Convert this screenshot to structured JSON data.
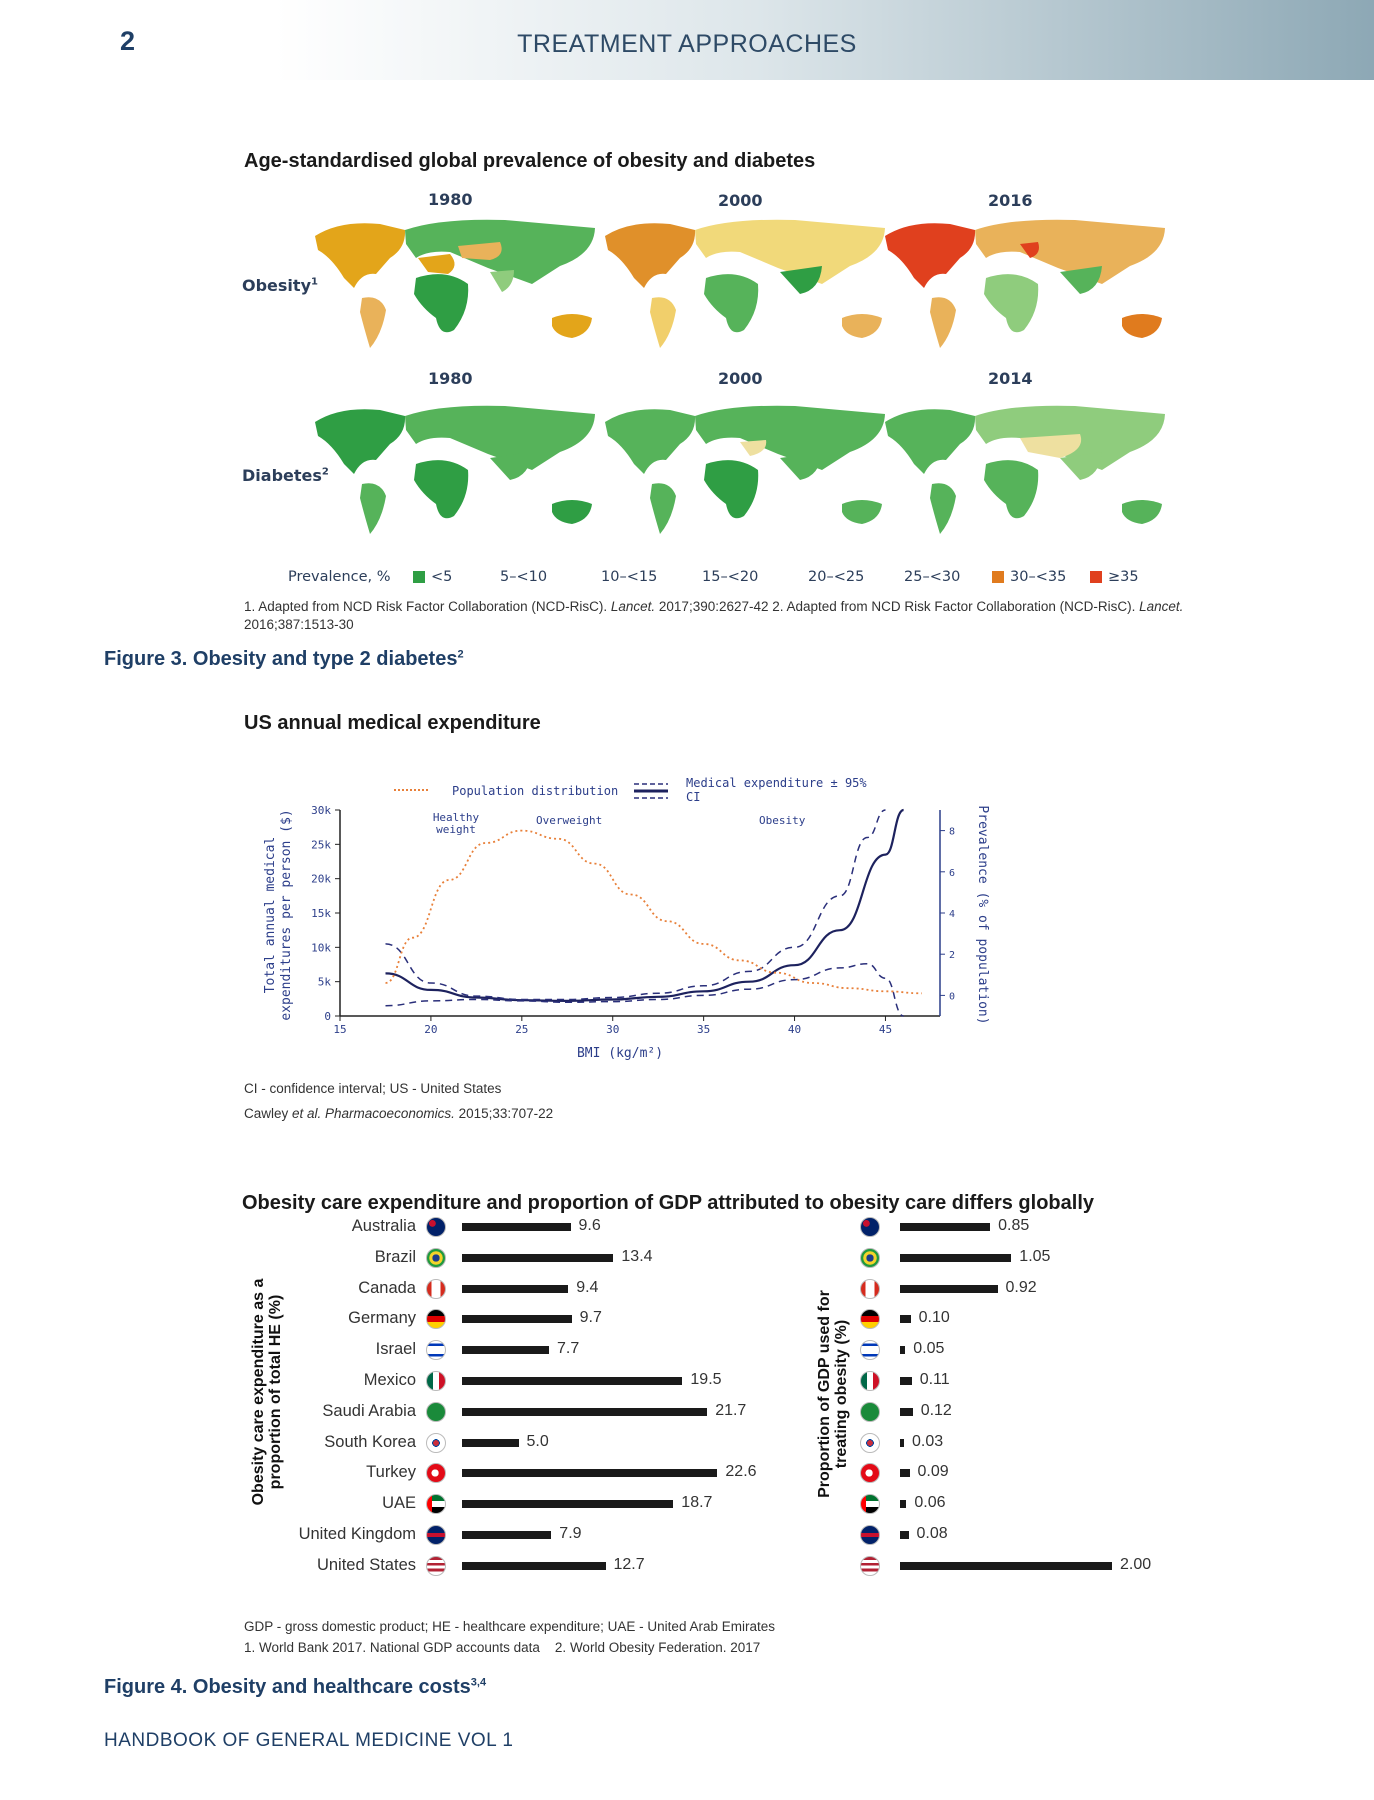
{
  "header": {
    "page_number": "2",
    "section_title": "TREATMENT APPROACHES"
  },
  "figure3": {
    "heading": "Age-standardised global prevalence of obesity and diabetes",
    "obesity_years": [
      "1980",
      "2000",
      "2016"
    ],
    "diabetes_years": [
      "1980",
      "2000",
      "2014"
    ],
    "obesity_label": "Obesity",
    "obesity_ref": "1",
    "diabetes_label": "Diabetes",
    "diabetes_ref": "2",
    "legend_title": "Prevalence, %",
    "legend": [
      {
        "label": "<5",
        "color": "#2f9e44"
      },
      {
        "label": "5–<10",
        "color": "#56b35a"
      },
      {
        "label": "10–<15",
        "color": "#8fcc7d"
      },
      {
        "label": "15–<20",
        "color": "#eee0a0"
      },
      {
        "label": "20–<25",
        "color": "#f1cf6b"
      },
      {
        "label": "25–<30",
        "color": "#e9b25a"
      },
      {
        "label": "30–<35",
        "color": "#e07b1e"
      },
      {
        "label": "≥35",
        "color": "#e0401e"
      }
    ],
    "reference_text_1": "1. Adapted from NCD Risk Factor Collaboration (NCD-RisC). ",
    "reference_journal_1": "Lancet.",
    "reference_text_2": " 2017;390:2627-42   2. Adapted from NCD Risk Factor Collaboration (NCD-RisC). ",
    "reference_journal_2": "Lancet.",
    "reference_text_3": " 2016;387:1513-30",
    "caption": "Figure 3. Obesity and type 2 diabetes",
    "caption_ref": "2"
  },
  "us_chart": {
    "heading": "US annual medical expenditure",
    "legend_population": "Population distribution",
    "legend_expenditure": "Medical expenditure ± 95% CI",
    "region_healthy": "Healthy weight",
    "region_overweight": "Overweight",
    "region_obesity": "Obesity",
    "ylabel_line1": "Total annual medical",
    "ylabel_line2": "expenditures per person ($)",
    "y2label": "Prevalence (% of population)",
    "xlabel": "BMI (kg/m²)",
    "note": "CI - confidence interval; US - United States",
    "citation_author": "Cawley ",
    "citation_etal": "et al. Pharmacoeconomics.",
    "citation_rest": " 2015;33:707-22"
  },
  "chart_data": {
    "type": "line",
    "xlabel": "BMI (kg/m²)",
    "ylabel": "Total annual medical expenditures per person ($)",
    "xlim": [
      15,
      48
    ],
    "ylim": [
      0,
      30000
    ],
    "x_ticks": [
      15,
      20,
      25,
      30,
      35,
      40,
      45
    ],
    "y_ticks": [
      0,
      5000,
      10000,
      15000,
      20000,
      25000,
      30000
    ],
    "y_tick_labels": [
      "0",
      "5k",
      "10k",
      "15k",
      "20k",
      "25k",
      "30k"
    ],
    "y2label": "Prevalence (% of population)",
    "y2lim": [
      -1,
      9
    ],
    "y2_ticks": [
      0,
      2,
      4,
      6,
      8
    ],
    "series": [
      {
        "name": "Medical expenditure ± 95% CI",
        "axis": "left",
        "x": [
          17.5,
          20,
          22.5,
          25,
          27.5,
          30,
          32.5,
          35,
          37.5,
          40,
          42.5,
          45,
          46
        ],
        "values": [
          6200,
          3800,
          2700,
          2300,
          2200,
          2400,
          2800,
          3600,
          5000,
          7400,
          12500,
          23500,
          30000
        ]
      },
      {
        "name": "Upper 95% CI",
        "axis": "left",
        "x": [
          17.5,
          20,
          22.5,
          25,
          27.5,
          30,
          32.5,
          35,
          37.5,
          40,
          42.5,
          44,
          45
        ],
        "values": [
          10500,
          4800,
          2900,
          2400,
          2400,
          2700,
          3300,
          4400,
          6500,
          10000,
          17500,
          26000,
          32000
        ]
      },
      {
        "name": "Lower 95% CI",
        "axis": "left",
        "x": [
          17.5,
          20,
          22.5,
          25,
          27.5,
          30,
          32.5,
          35,
          37.5,
          40,
          42.5,
          44,
          45,
          46
        ],
        "values": [
          1500,
          2200,
          2400,
          2200,
          2000,
          2100,
          2400,
          3000,
          3900,
          5300,
          7000,
          7600,
          5500,
          0
        ]
      },
      {
        "name": "Population distribution",
        "axis": "right",
        "x": [
          17.5,
          19,
          21,
          23,
          25,
          27,
          29,
          31,
          33,
          35,
          37,
          39,
          41,
          43,
          45,
          47
        ],
        "values": [
          0.6,
          2.8,
          5.6,
          7.4,
          8.0,
          7.6,
          6.4,
          4.9,
          3.6,
          2.5,
          1.7,
          1.1,
          0.6,
          0.35,
          0.2,
          0.1
        ]
      }
    ]
  },
  "figure4": {
    "heading": "Obesity care expenditure and proportion of GDP attributed to obesity care differs globally",
    "left_axis_line1": "Obesity care expenditure as a",
    "left_axis_line2": "proportion of total HE (%)",
    "right_axis_line1": "Proportion of GDP used for",
    "right_axis_line2": "treating obesity (%)",
    "countries": [
      {
        "name": "Australia",
        "flag": "australia-flag",
        "he": 9.6,
        "he_label": "9.6",
        "gdp": 0.85,
        "gdp_label": "0.85"
      },
      {
        "name": "Brazil",
        "flag": "brazil-flag",
        "he": 13.4,
        "he_label": "13.4",
        "gdp": 1.05,
        "gdp_label": "1.05"
      },
      {
        "name": "Canada",
        "flag": "canada-flag",
        "he": 9.4,
        "he_label": "9.4",
        "gdp": 0.92,
        "gdp_label": "0.92"
      },
      {
        "name": "Germany",
        "flag": "germany-flag",
        "he": 9.7,
        "he_label": "9.7",
        "gdp": 0.1,
        "gdp_label": "0.10"
      },
      {
        "name": "Israel",
        "flag": "israel-flag",
        "he": 7.7,
        "he_label": "7.7",
        "gdp": 0.05,
        "gdp_label": "0.05"
      },
      {
        "name": "Mexico",
        "flag": "mexico-flag",
        "he": 19.5,
        "he_label": "19.5",
        "gdp": 0.11,
        "gdp_label": "0.11"
      },
      {
        "name": "Saudi Arabia",
        "flag": "saudi-arabia-flag",
        "he": 21.7,
        "he_label": "21.7",
        "gdp": 0.12,
        "gdp_label": "0.12"
      },
      {
        "name": "South Korea",
        "flag": "south-korea-flag",
        "he": 5.0,
        "he_label": "5.0",
        "gdp": 0.03,
        "gdp_label": "0.03"
      },
      {
        "name": "Turkey",
        "flag": "turkey-flag",
        "he": 22.6,
        "he_label": "22.6",
        "gdp": 0.09,
        "gdp_label": "0.09"
      },
      {
        "name": "UAE",
        "flag": "uae-flag",
        "he": 18.7,
        "he_label": "18.7",
        "gdp": 0.06,
        "gdp_label": "0.06"
      },
      {
        "name": "United Kingdom",
        "flag": "united-kingdom-flag",
        "he": 7.9,
        "he_label": "7.9",
        "gdp": 0.08,
        "gdp_label": "0.08"
      },
      {
        "name": "United States",
        "flag": "united-states-flag",
        "he": 12.7,
        "he_label": "12.7",
        "gdp": 2.0,
        "gdp_label": "2.00"
      }
    ],
    "note1": "GDP - gross domestic product; HE - healthcare expenditure; UAE - United Arab Emirates",
    "note2": "1. World Bank 2017. National GDP accounts data    2. World Obesity Federation. 2017",
    "caption": "Figure 4. Obesity and healthcare costs",
    "caption_ref": "3,4"
  },
  "footer": {
    "text": "HANDBOOK OF GENERAL MEDICINE VOL 1"
  }
}
